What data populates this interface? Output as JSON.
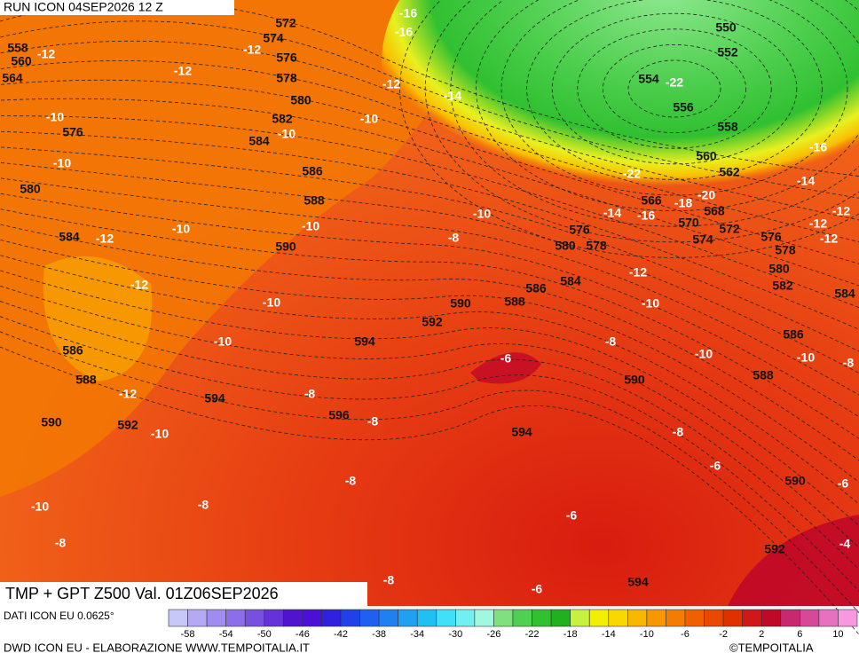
{
  "header": {
    "run": "RUN ICON 04SEP2026 12 Z",
    "title": "TMP + GPT Z500 Val. 01Z06SEP2026"
  },
  "gpt_labels": [
    "572",
    "574",
    "576",
    "578",
    "580",
    "582",
    "584",
    "586",
    "588",
    "590",
    "558",
    "560",
    "564",
    "576",
    "580",
    "584",
    "586",
    "588",
    "590",
    "592",
    "594",
    "594",
    "596",
    "592",
    "590",
    "588",
    "586",
    "584",
    "580",
    "578",
    "576",
    "566",
    "570",
    "568",
    "574",
    "572",
    "576",
    "578",
    "580",
    "582",
    "584",
    "586",
    "588",
    "590",
    "590",
    "592",
    "594",
    "594",
    "550",
    "552",
    "554",
    "556",
    "558",
    "560",
    "562"
  ],
  "tmp_labels": [
    "-16",
    "-16",
    "-12",
    "-12",
    "-12",
    "-12",
    "-14",
    "-22",
    "-10",
    "-10",
    "-10",
    "-10",
    "-12",
    "-10",
    "-10",
    "-10",
    "-8",
    "-12",
    "-10",
    "-10",
    "-12",
    "-10",
    "-8",
    "-8",
    "-8",
    "-8",
    "-10",
    "-8",
    "-6",
    "-8",
    "-10",
    "-12",
    "-10",
    "-10",
    "-8",
    "-8",
    "-6",
    "-6",
    "-6",
    "-6",
    "-4",
    "-8",
    "-22",
    "-20",
    "-18",
    "-16",
    "-14",
    "-16",
    "-14",
    "-12",
    "-12",
    "-12"
  ],
  "legend": {
    "ticks": [
      "-58",
      "-54",
      "-50",
      "-46",
      "-42",
      "-38",
      "-34",
      "-30",
      "-26",
      "-22",
      "-18",
      "-14",
      "-10",
      "-6",
      "-2",
      "2",
      "6",
      "10"
    ],
    "colors": [
      "#c8c8f8",
      "#b4aaf4",
      "#a08cf0",
      "#8c6ee8",
      "#7850e0",
      "#6432d8",
      "#5014d0",
      "#4a10d8",
      "#3020e0",
      "#2040e8",
      "#2060f0",
      "#2080f0",
      "#20a0f0",
      "#20c0f0",
      "#40e0f8",
      "#70f0f0",
      "#a0f8e0",
      "#80e080",
      "#50d050",
      "#30c030",
      "#20b020",
      "#c8f040",
      "#f0f000",
      "#f8d800",
      "#f8b800",
      "#f89800",
      "#f47c00",
      "#f06000",
      "#e84800",
      "#e03000",
      "#d01818",
      "#c00828",
      "#c82870",
      "#d84898",
      "#e870c0",
      "#f898e0"
    ]
  },
  "footer": {
    "data_source": "DATI ICON EU 0.0625°",
    "credit": "DWD ICON EU - ELABORAZIONE WWW.TEMPOITALIA.IT",
    "copyright": "©TEMPOITALIA"
  }
}
